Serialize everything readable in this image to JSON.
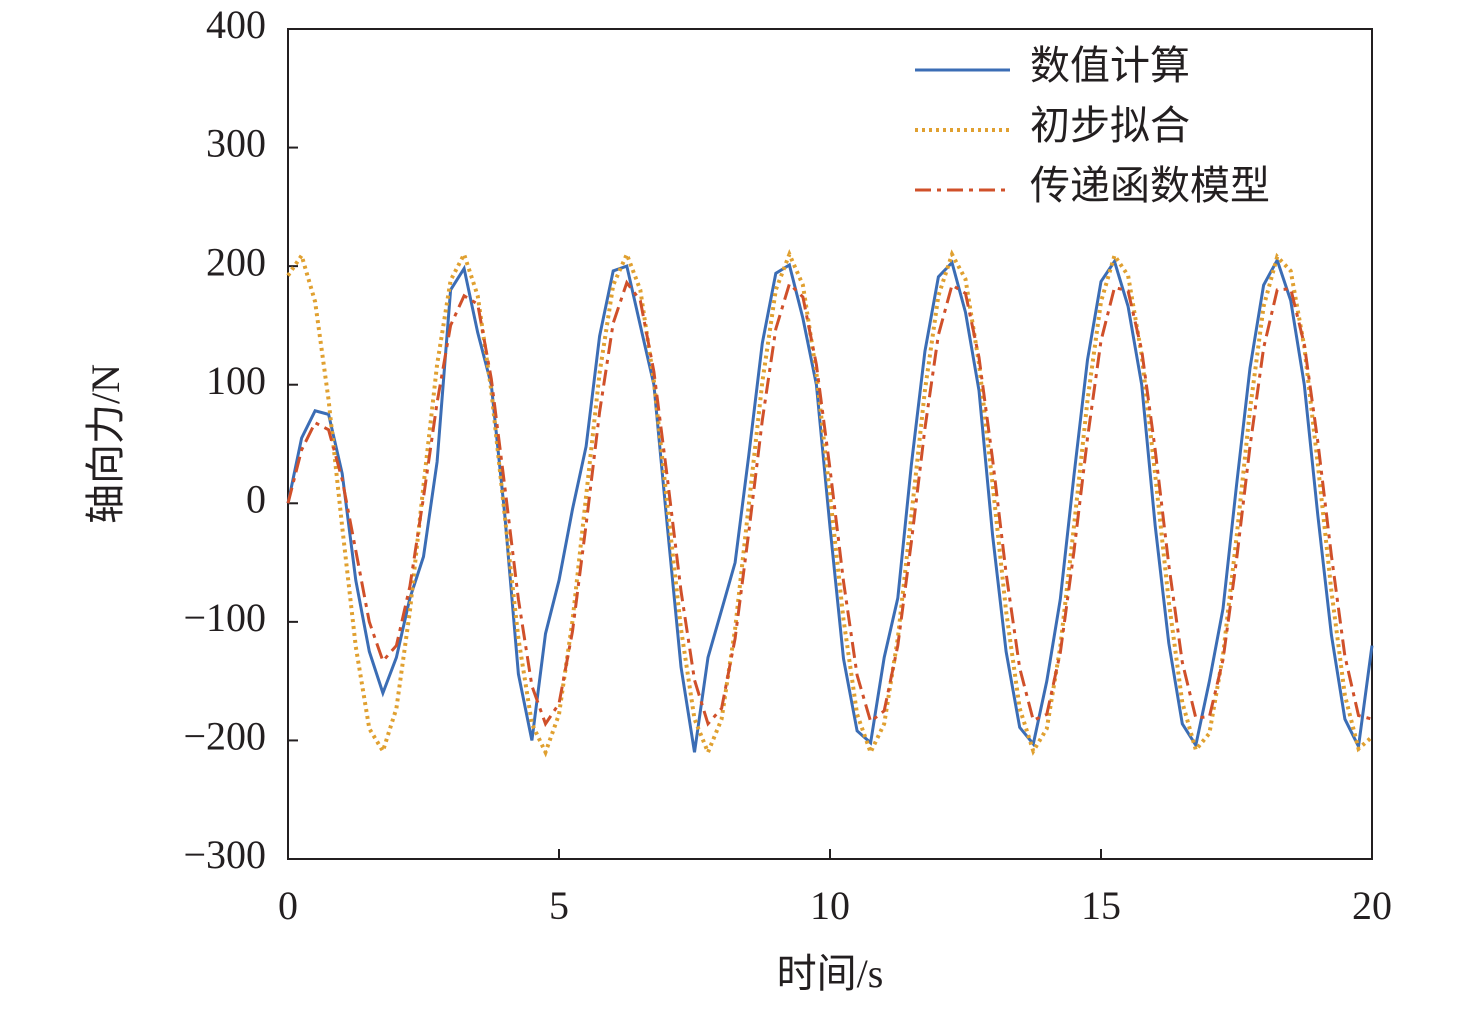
{
  "chart_data": {
    "type": "line",
    "x_label": "时间/s",
    "y_label": "轴向力/N",
    "xlim": [
      0,
      20
    ],
    "ylim": [
      -300,
      400
    ],
    "xticks": [
      0,
      5,
      10,
      15,
      20
    ],
    "yticks": [
      {
        "value": -300,
        "label": "−300"
      },
      {
        "value": -200,
        "label": "−200"
      },
      {
        "value": -100,
        "label": "−100"
      },
      0,
      100,
      200,
      300,
      400
    ],
    "grid": false,
    "legend": "upper right",
    "x": [
      0,
      0.25,
      0.5,
      0.75,
      1,
      1.25,
      1.5,
      1.75,
      2,
      2.25,
      2.5,
      2.75,
      3,
      3.25,
      3.5,
      3.75,
      4,
      4.25,
      4.5,
      4.75,
      5,
      5.25,
      5.5,
      5.75,
      6,
      6.25,
      6.5,
      6.75,
      7,
      7.25,
      7.5,
      7.75,
      8,
      8.25,
      8.5,
      8.75,
      9,
      9.25,
      9.5,
      9.75,
      10,
      10.25,
      10.5,
      10.75,
      11,
      11.25,
      11.5,
      11.75,
      12,
      12.25,
      12.5,
      12.75,
      13,
      13.25,
      13.5,
      13.75,
      14,
      14.25,
      14.5,
      14.75,
      15,
      15.25,
      15.5,
      15.75,
      16,
      16.25,
      16.5,
      16.75,
      17,
      17.25,
      17.5,
      17.75,
      18,
      18.25,
      18.5,
      18.75,
      19,
      19.25,
      19.5,
      19.75,
      20
    ],
    "series": [
      {
        "name": "数值计算",
        "color": "#3b6db5",
        "style": "solid",
        "values": [
          0,
          55,
          78,
          75,
          25,
          -65,
          -125,
          -160,
          -130,
          -80,
          -45,
          35,
          180,
          198,
          144,
          100,
          -10,
          -144,
          -200,
          -110,
          -65,
          -5,
          48,
          141,
          196,
          200,
          150,
          100,
          -20,
          -138,
          -210,
          -130,
          -90,
          -50,
          40,
          135,
          194,
          201,
          156,
          100,
          -20,
          -131,
          -192,
          -202,
          -130,
          -80,
          32,
          128,
          191,
          203,
          161,
          95,
          -27,
          -125,
          -189,
          -203,
          -150,
          -81,
          23,
          121,
          187,
          204,
          166,
          100,
          -19,
          -118,
          -186,
          -204,
          -150,
          -89,
          15,
          114,
          184,
          205,
          171,
          100,
          -10,
          -111,
          -182,
          -205,
          -120
        ]
      },
      {
        "name": "初步拟合",
        "color": "#e0a030",
        "style": "dotted",
        "values": [
          192,
          209,
          170,
          87,
          -20,
          -121,
          -190,
          -209,
          -173,
          -91,
          15,
          117,
          188,
          210,
          175,
          95,
          -11,
          -114,
          -186,
          -210,
          -178,
          -99,
          6,
          110,
          184,
          210,
          180,
          103,
          -2,
          -106,
          -182,
          -210,
          -182,
          -106,
          -2,
          102,
          180,
          210,
          184,
          110,
          7,
          -98,
          -178,
          -210,
          -186,
          -114,
          -11,
          95,
          175,
          210,
          189,
          118,
          16,
          -91,
          -173,
          -209,
          -190,
          -121,
          -20,
          87,
          170,
          209,
          192,
          125,
          24,
          -83,
          -168,
          -208,
          -194,
          -128,
          -29,
          79,
          166,
          208,
          196,
          132,
          33,
          -74,
          -162,
          -207,
          -197
        ]
      },
      {
        "name": "传递函数模型",
        "color": "#d0502a",
        "style": "dashdot",
        "values": [
          0,
          45,
          68,
          62,
          20,
          -40,
          -100,
          -133,
          -120,
          -70,
          5,
          85,
          150,
          175,
          168,
          105,
          14,
          -81,
          -154,
          -186,
          -169,
          -108,
          -18,
          77,
          152,
          186,
          171,
          111,
          21,
          -74,
          -149,
          -186,
          -173,
          -114,
          -25,
          70,
          147,
          185,
          174,
          117,
          29,
          -66,
          -145,
          -184,
          -175,
          -120,
          -33,
          63,
          142,
          184,
          177,
          123,
          37,
          -59,
          -139,
          -183,
          -178,
          -126,
          -41,
          55,
          137,
          182,
          179,
          129,
          45,
          -52,
          -134,
          -181,
          -180,
          -132,
          -48,
          48,
          131,
          180,
          181,
          134,
          52,
          -44,
          -129,
          -179,
          -182
        ]
      }
    ]
  }
}
